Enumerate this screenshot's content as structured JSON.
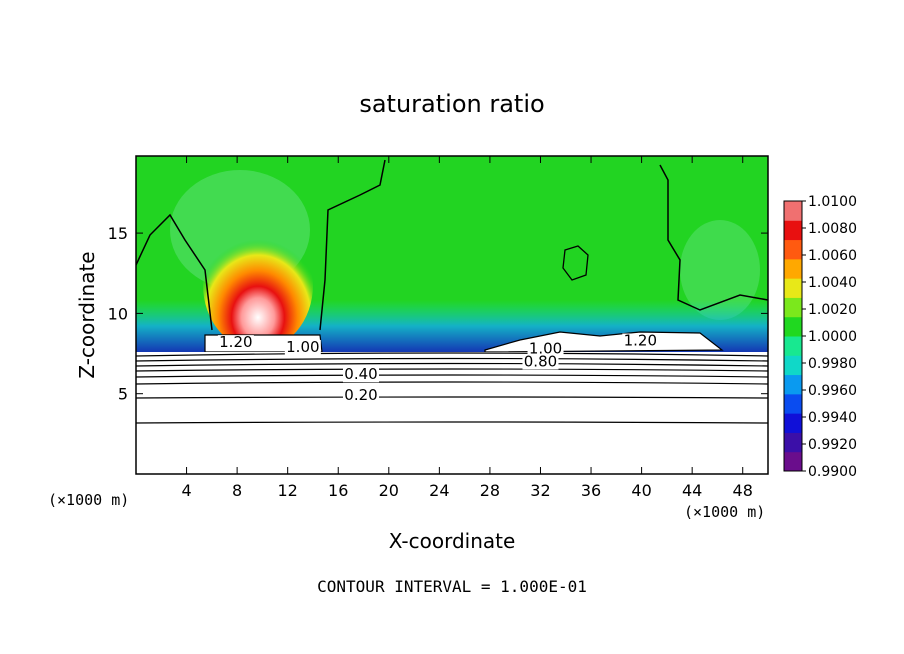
{
  "chart_data": {
    "type": "heatmap",
    "title": "saturation ratio",
    "xlabel": "X-coordinate",
    "ylabel": "Z-coordinate",
    "x_unit_left": "(×1000 m)",
    "x_unit_right": "(×1000 m)",
    "footer": "CONTOUR INTERVAL = 1.000E-01",
    "xlim": [
      0,
      50
    ],
    "ylim": [
      0,
      19.8
    ],
    "x_ticks": [
      4,
      8,
      12,
      16,
      20,
      24,
      28,
      32,
      36,
      40,
      44,
      48
    ],
    "y_ticks": [
      5,
      10,
      15
    ],
    "colorbar": {
      "min": 0.99,
      "max": 1.01,
      "ticks": [
        "1.0100",
        "1.0080",
        "1.0060",
        "1.0040",
        "1.0020",
        "1.0000",
        "0.9980",
        "0.9960",
        "0.9940",
        "0.9920",
        "0.9900"
      ],
      "colors": [
        "#6a0d8c",
        "#3b0fa8",
        "#1010d8",
        "#0a4cf0",
        "#0a9af0",
        "#10d8c8",
        "#18e890",
        "#20d820",
        "#7be81c",
        "#e8e818",
        "#ffa800",
        "#ff5a10",
        "#e81010",
        "#f07070"
      ]
    },
    "contour_labels": [
      {
        "text": "1.20",
        "x": 7.9,
        "z": 7.9
      },
      {
        "text": "1.00",
        "x": 13.2,
        "z": 7.6
      },
      {
        "text": "0.40",
        "x": 17.8,
        "z": 5.9
      },
      {
        "text": "0.20",
        "x": 17.8,
        "z": 4.6
      },
      {
        "text": "1.00",
        "x": 32.4,
        "z": 7.5
      },
      {
        "text": "0.80",
        "x": 32.0,
        "z": 6.7
      },
      {
        "text": "1.20",
        "x": 39.9,
        "z": 8.0
      }
    ],
    "contour_levels_below_cloud": [
      0.2,
      0.3,
      0.4,
      0.5,
      0.6,
      0.7,
      0.8,
      0.9
    ]
  }
}
